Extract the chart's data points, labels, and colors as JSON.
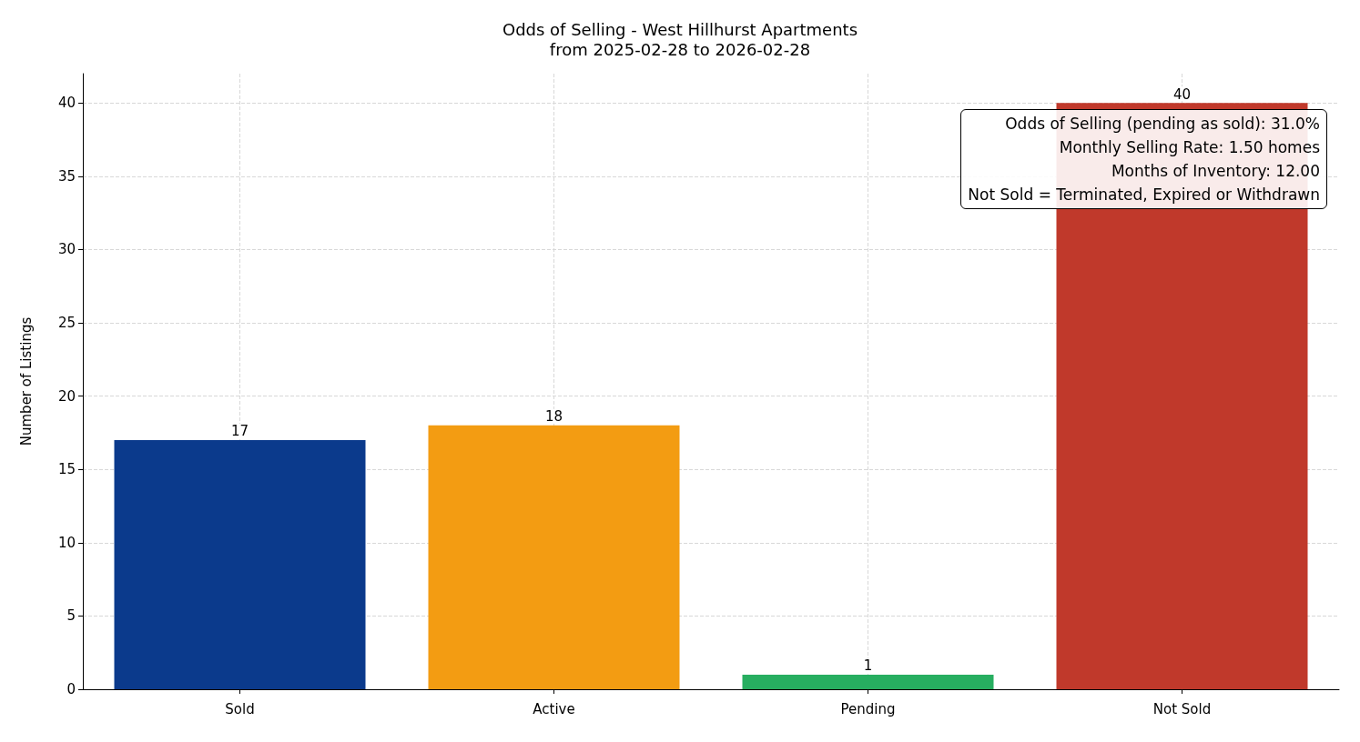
{
  "chart_data": {
    "type": "bar",
    "title": "Odds of Selling - West Hillhurst Apartments",
    "subtitle": "from 2025-02-28 to 2026-02-28",
    "ylabel": "Number of Listings",
    "categories": [
      "Sold",
      "Active",
      "Pending",
      "Not Sold"
    ],
    "values": [
      17,
      18,
      1,
      40
    ],
    "colors": [
      "#0b3a8c",
      "#f39c12",
      "#27ae60",
      "#c0392b"
    ],
    "ylim": [
      0,
      42
    ],
    "yticks": [
      0,
      5,
      10,
      15,
      20,
      25,
      30,
      35,
      40
    ],
    "grid": true,
    "data_labels": true,
    "annotations": [
      "Odds of Selling (pending as sold): 31.0%",
      "Monthly Selling Rate: 1.50 homes",
      "Months of Inventory: 12.00",
      "Not Sold = Terminated, Expired or Withdrawn"
    ]
  }
}
